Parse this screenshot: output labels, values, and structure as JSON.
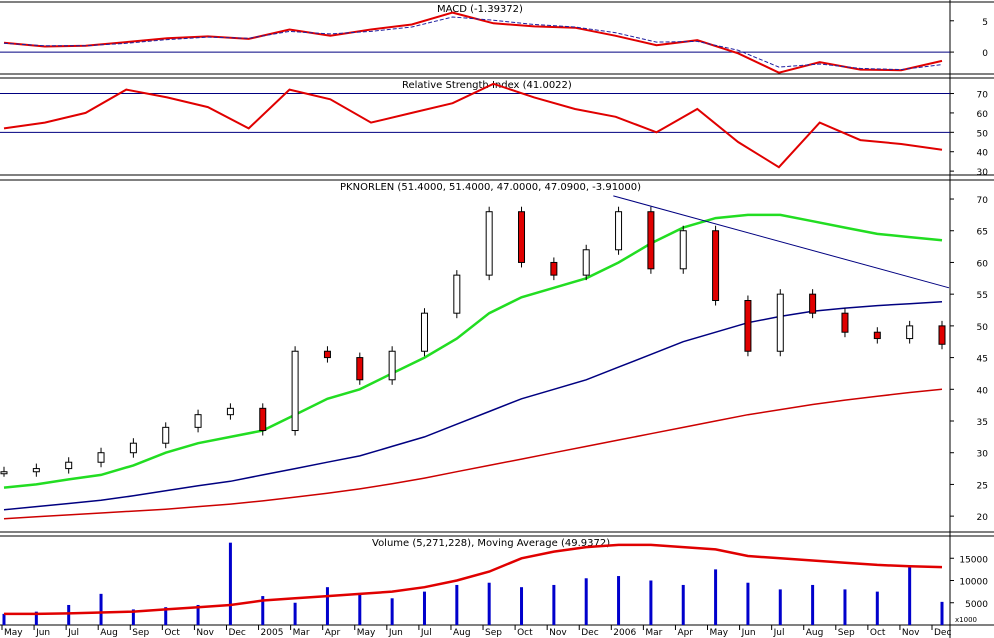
{
  "chart_data": [
    {
      "type": "line",
      "panel": "macd",
      "title": "MACD (-1.39372)",
      "y_ticks": [
        "5",
        "0"
      ],
      "ylim": [
        -3.5,
        8
      ],
      "x": [
        0,
        1,
        2,
        3,
        4,
        5,
        6,
        7,
        8,
        9,
        10,
        11,
        12,
        13,
        14,
        15,
        16,
        17,
        18,
        19,
        20,
        21,
        22,
        23
      ],
      "series": [
        {
          "role": "macd",
          "color": "#e00000",
          "values": [
            1.5,
            0.9,
            1.0,
            1.6,
            2.2,
            2.5,
            2.1,
            3.6,
            2.6,
            3.6,
            4.4,
            6.3,
            4.6,
            4.1,
            3.9,
            2.6,
            1.1,
            1.9,
            -0.2,
            -3.3,
            -1.6,
            -2.8,
            -2.9,
            -1.4
          ]
        },
        {
          "role": "signal",
          "color": "#2020a0",
          "values": [
            1.4,
            1.0,
            1.0,
            1.4,
            2.0,
            2.4,
            2.2,
            3.3,
            2.9,
            3.3,
            4.0,
            5.6,
            5.1,
            4.4,
            4.0,
            3.1,
            1.6,
            1.7,
            0.3,
            -2.4,
            -1.9,
            -2.6,
            -2.8,
            -2.0
          ]
        }
      ],
      "reference_lines": [
        0
      ]
    },
    {
      "type": "line",
      "panel": "rsi",
      "title": "Relative Strength Index (41.0022)",
      "y_ticks": [
        "70",
        "60",
        "50",
        "40",
        "30"
      ],
      "ylim": [
        28,
        78
      ],
      "reference_lines": [
        70,
        50
      ],
      "x": [
        0,
        1,
        2,
        3,
        4,
        5,
        6,
        7,
        8,
        9,
        10,
        11,
        12,
        13,
        14,
        15,
        16,
        17,
        18,
        19,
        20,
        21,
        22,
        23
      ],
      "series": [
        {
          "role": "rsi",
          "color": "#e00000",
          "values": [
            52,
            55,
            60,
            72,
            68,
            63,
            52,
            72,
            67,
            55,
            60,
            65,
            75,
            68,
            62,
            58,
            50,
            62,
            45,
            32,
            55,
            46,
            44,
            41
          ]
        }
      ]
    },
    {
      "type": "candlestick",
      "panel": "price",
      "title": "PKNORLEN (51.4000, 51.4000, 47.0000, 47.0900, -3.91000)",
      "y_ticks": [
        "70",
        "65",
        "60",
        "55",
        "50",
        "45",
        "40",
        "35",
        "30",
        "25",
        "20"
      ],
      "ylim": [
        17.5,
        73
      ],
      "x_labels": [
        "May",
        "Jun",
        "Jul",
        "Aug",
        "Sep",
        "Oct",
        "Nov",
        "Dec",
        "2005",
        "Mar",
        "Apr",
        "May",
        "Jun",
        "Jul",
        "Aug",
        "Sep",
        "Oct",
        "Nov",
        "Dec",
        "2006",
        "Mar",
        "Apr",
        "May",
        "Jun",
        "Jul",
        "Aug",
        "Sep",
        "Oct",
        "Nov",
        "Dec"
      ],
      "close": [
        27,
        27.5,
        28.5,
        30,
        31.5,
        34,
        36,
        37,
        33.5,
        46,
        45,
        41.5,
        46,
        52,
        58,
        68,
        60,
        58,
        62,
        68,
        59,
        65,
        54,
        46,
        55,
        52,
        49,
        48,
        50,
        47.1
      ],
      "series": [
        {
          "name": "moving average",
          "color": "#22dd22",
          "values": [
            24.5,
            25,
            25.8,
            26.5,
            28,
            30,
            31.5,
            32.5,
            33.5,
            36,
            38.5,
            40,
            42.5,
            45,
            48,
            52,
            54.5,
            56,
            57.5,
            60,
            63,
            65.5,
            67,
            67.5,
            67.5,
            66.5,
            65.5,
            64.5,
            64,
            63.5
          ]
        },
        {
          "name": "moving average",
          "color": "#000080",
          "values": [
            21,
            21.5,
            22,
            22.5,
            23.2,
            24,
            24.8,
            25.5,
            26.5,
            27.5,
            28.5,
            29.5,
            31,
            32.5,
            34.5,
            36.5,
            38.5,
            40,
            41.5,
            43.5,
            45.5,
            47.5,
            49,
            50.5,
            51.5,
            52.3,
            52.8,
            53.2,
            53.5,
            53.8
          ]
        },
        {
          "name": "moving average",
          "color": "#cc0000",
          "values": [
            19.6,
            19.9,
            20.2,
            20.5,
            20.8,
            21.1,
            21.5,
            21.9,
            22.4,
            23,
            23.6,
            24.3,
            25.1,
            26,
            27,
            28,
            29,
            30,
            31,
            32,
            33,
            34,
            35,
            36,
            36.8,
            37.6,
            38.3,
            38.9,
            39.5,
            40
          ]
        }
      ],
      "trendline": {
        "from": [
          "2006",
          70.5
        ],
        "to": [
          "Dec",
          56
        ]
      }
    },
    {
      "type": "bar",
      "panel": "volume",
      "title": "Volume (5,271,228), Moving Average (49.9372)",
      "y_ticks": [
        "15000",
        "10000",
        "5000"
      ],
      "ylim": [
        0,
        20000
      ],
      "unit": "x1000",
      "values": [
        2500,
        3000,
        4500,
        7000,
        3500,
        4000,
        4500,
        18500,
        6500,
        5000,
        8500,
        7000,
        6000,
        7500,
        9000,
        9500,
        8500,
        9000,
        10500,
        11000,
        10000,
        9000,
        12500,
        9500,
        8000,
        9000,
        8000,
        7500,
        13000,
        5200
      ],
      "series": [
        {
          "name": "moving average",
          "color": "#e00000",
          "values": [
            2500,
            2500,
            2600,
            2800,
            3000,
            3500,
            4000,
            4500,
            5500,
            6000,
            6500,
            7000,
            7500,
            8500,
            10000,
            12000,
            15000,
            16500,
            17500,
            18000,
            18000,
            17500,
            17000,
            15500,
            15000,
            14500,
            14000,
            13500,
            13200,
            13000
          ]
        }
      ]
    }
  ]
}
